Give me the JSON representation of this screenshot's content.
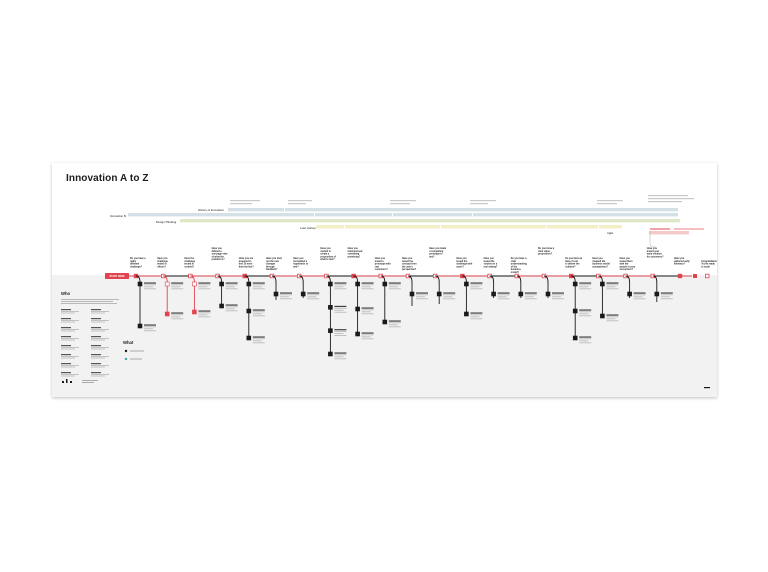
{
  "poster": {
    "title": "Innovation A to Z",
    "section_who": "Who",
    "section_what": "What",
    "tracks": {
      "history": "History of Innovation",
      "innovation": "Innovation IV",
      "design": "Design Thinking",
      "lean": "Lean startup",
      "agile": "Agile"
    },
    "start_label": "START HERE"
  },
  "colors": {
    "accent": "#e0454f",
    "line": "#1a1a1a",
    "track_blue": "#d3e0e6",
    "track_green": "#dde8c8",
    "track_yellow": "#f3efc4",
    "track_pink": "#f3c9c9",
    "panel": "#f2f2f3"
  },
  "questions": [
    "Do you have a really different challenge?",
    "Have you challenge tested in offices?",
    "Have the challenge tested in context?",
    "Have you defined a one-page view of what the problem is?",
    "Have you are prepared to test 10 more than the last?",
    "Have you tried out the new changes through feedback?",
    "Have you formulated a hypothesis to test?",
    "Have you started to create a proposition of what to test?",
    "Have you brainstormed something promising?",
    "Have you tested a prototype with real customers?",
    "Have you tested the concept from the user's perspective?",
    "Have you made a compelling prototype to test?",
    "Have you tested the challenge with users?",
    "Have you tested the solution in a real setting?",
    "Do you have a clear understanding of the business model?",
    "Do you know a clear value proposition?",
    "Do you have an idea of cost to deliver the solution?",
    "Have you mapped the business model assumptions?",
    "Have you tested them with the people in your ecosystem?",
    "Have you tested your early solution for customers?",
    "Have you gathered early evidence?",
    "Congratulations! You're ready to scale"
  ],
  "icons": [
    "logo-icon",
    "target-icon",
    "lightbulb-icon",
    "rocket-icon"
  ]
}
